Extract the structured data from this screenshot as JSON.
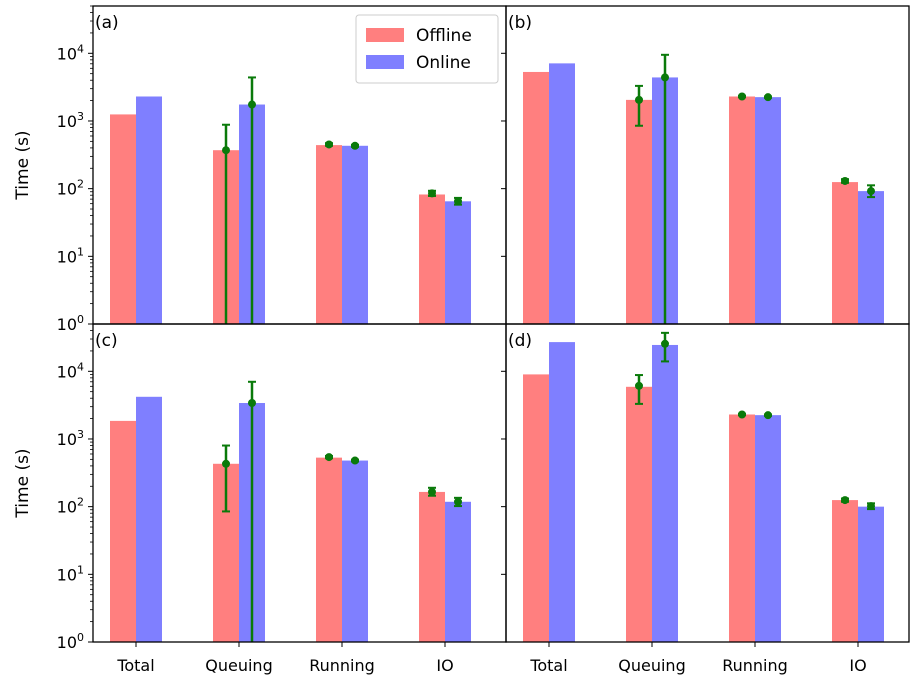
{
  "chart_data": {
    "type": "bar",
    "y_scale": "log",
    "ylim": [
      1,
      50000
    ],
    "ylabel": "Time (s)",
    "categories": [
      "Total",
      "Queuing",
      "Running",
      "IO"
    ],
    "y_ticks": [
      {
        "value": 1,
        "label_base": "10",
        "label_exp": "0"
      },
      {
        "value": 10,
        "label_base": "10",
        "label_exp": "1"
      },
      {
        "value": 100,
        "label_base": "10",
        "label_exp": "2"
      },
      {
        "value": 1000,
        "label_base": "10",
        "label_exp": "3"
      },
      {
        "value": 10000,
        "label_base": "10",
        "label_exp": "4"
      }
    ],
    "legend": {
      "placement": "top-right of panel (a)",
      "entries": [
        {
          "name": "Offline",
          "color": "#ff7f7f"
        },
        {
          "name": "Online",
          "color": "#7f7fff"
        }
      ]
    },
    "errorbar_color": "#0a7a0a",
    "panels": [
      {
        "label": "(a)",
        "series": [
          {
            "name": "Offline",
            "values": [
              1250,
              370,
              440,
              82
            ],
            "errors": [
              null,
              {
                "mean": 370,
                "low": 1,
                "high": 880
              },
              {
                "mean": 450,
                "low": 430,
                "high": 470
              },
              {
                "mean": 85,
                "low": 78,
                "high": 93
              }
            ]
          },
          {
            "name": "Online",
            "values": [
              2300,
              1750,
              430,
              65
            ],
            "errors": [
              null,
              {
                "mean": 1750,
                "low": 1,
                "high": 4400
              },
              {
                "mean": 430,
                "low": 415,
                "high": 445
              },
              {
                "mean": 65,
                "low": 58,
                "high": 73
              }
            ]
          }
        ]
      },
      {
        "label": "(b)",
        "series": [
          {
            "name": "Offline",
            "values": [
              5300,
              2050,
              2300,
              125
            ],
            "errors": [
              null,
              {
                "mean": 2050,
                "low": 850,
                "high": 3300
              },
              {
                "mean": 2300,
                "low": 2250,
                "high": 2350
              },
              {
                "mean": 130,
                "low": 122,
                "high": 138
              }
            ]
          },
          {
            "name": "Online",
            "values": [
              7100,
              4400,
              2250,
              92
            ],
            "errors": [
              null,
              {
                "mean": 4400,
                "low": 1,
                "high": 9500
              },
              {
                "mean": 2250,
                "low": 2200,
                "high": 2300
              },
              {
                "mean": 92,
                "low": 75,
                "high": 112
              }
            ]
          }
        ]
      },
      {
        "label": "(c)",
        "series": [
          {
            "name": "Offline",
            "values": [
              1850,
              430,
              530,
              165
            ],
            "errors": [
              null,
              {
                "mean": 430,
                "low": 85,
                "high": 800
              },
              {
                "mean": 540,
                "low": 520,
                "high": 560
              },
              {
                "mean": 165,
                "low": 145,
                "high": 190
              }
            ]
          },
          {
            "name": "Online",
            "values": [
              4200,
              3400,
              480,
              118
            ],
            "errors": [
              null,
              {
                "mean": 3400,
                "low": 1,
                "high": 7000
              },
              {
                "mean": 480,
                "low": 465,
                "high": 495
              },
              {
                "mean": 118,
                "low": 102,
                "high": 135
              }
            ]
          }
        ]
      },
      {
        "label": "(d)",
        "series": [
          {
            "name": "Offline",
            "values": [
              9000,
              5900,
              2300,
              125
            ],
            "errors": [
              null,
              {
                "mean": 6100,
                "low": 3300,
                "high": 8800
              },
              {
                "mean": 2300,
                "low": 2250,
                "high": 2350
              },
              {
                "mean": 125,
                "low": 118,
                "high": 132
              }
            ]
          },
          {
            "name": "Online",
            "values": [
              27000,
              24500,
              2250,
              100
            ],
            "errors": [
              null,
              {
                "mean": 25500,
                "low": 14000,
                "high": 37000
              },
              {
                "mean": 2250,
                "low": 2200,
                "high": 2300
              },
              {
                "mean": 102,
                "low": 92,
                "high": 112
              }
            ]
          }
        ]
      }
    ]
  }
}
